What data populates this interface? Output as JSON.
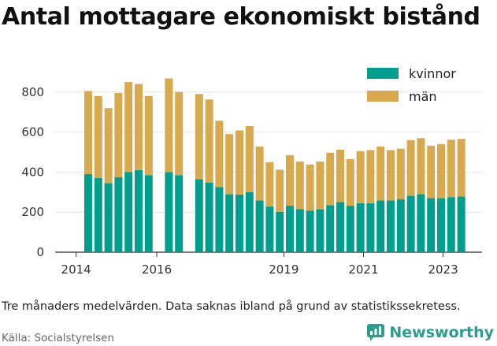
{
  "title": "Antal mottagare ekonomiskt bistånd",
  "note": "Tre månaders medelvärden. Data saknas ibland på grund av statistikssekretess.",
  "source": "Källa: Socialstyrelsen",
  "brand": "Newsworthy",
  "colors": {
    "kvinnor": "#009e8e",
    "man": "#d9a94f",
    "brand": "#2a9d8f"
  },
  "chart_data": {
    "type": "bar",
    "stacked": true,
    "x_ticks": [
      "2014",
      "2016",
      "2019",
      "2021",
      "2023"
    ],
    "y_ticks": [
      0,
      200,
      400,
      600,
      800
    ],
    "ylim": [
      0,
      900
    ],
    "legend": [
      "kvinnor",
      "män"
    ],
    "legend_position": "top-right",
    "series": [
      {
        "name": "kvinnor",
        "values": [
          390,
          370,
          345,
          375,
          400,
          410,
          385,
          null,
          400,
          385,
          null,
          365,
          348,
          325,
          290,
          288,
          300,
          258,
          228,
          202,
          232,
          215,
          208,
          215,
          235,
          250,
          232,
          245,
          245,
          258,
          258,
          265,
          282,
          290,
          270,
          270,
          275,
          278
        ]
      },
      {
        "name": "män",
        "values": [
          415,
          410,
          375,
          420,
          450,
          430,
          395,
          null,
          468,
          415,
          null,
          425,
          415,
          332,
          300,
          320,
          330,
          270,
          222,
          210,
          253,
          238,
          230,
          238,
          262,
          262,
          233,
          260,
          265,
          270,
          252,
          252,
          278,
          280,
          262,
          270,
          287,
          288
        ]
      }
    ]
  }
}
